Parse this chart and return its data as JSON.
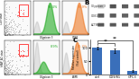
{
  "panel_B_labels": [
    "Glypican 3",
    "CD81",
    "ACTIN"
  ],
  "panel_B_lanes": 4,
  "panel_C_bars": [
    100,
    90,
    15
  ],
  "panel_C_errors": [
    5,
    8,
    4
  ],
  "panel_C_xlabels": [
    "ctrl",
    "CD9/81",
    "GPC3"
  ],
  "panel_C_ylabel": "Relative expression\n(%of control)",
  "bar_color": "#3a6fba",
  "background_color": "#ffffff",
  "title_B": "B",
  "title_C": "C",
  "ylim_C": [
    0,
    130
  ]
}
